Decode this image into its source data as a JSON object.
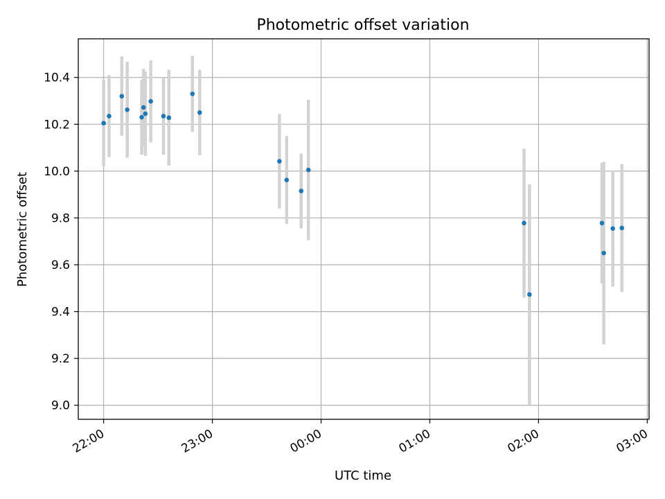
{
  "chart_data": {
    "type": "scatter",
    "title": "Photometric offset variation",
    "xlabel": "UTC time",
    "ylabel": "Photometric offset",
    "x_is_time": true,
    "xlim": [
      "21:46",
      "03:01"
    ],
    "ylim": [
      8.94,
      10.565
    ],
    "xticks": [
      "22:00",
      "23:00",
      "00:00",
      "01:00",
      "02:00",
      "03:00"
    ],
    "yticks": [
      9.0,
      9.2,
      9.4,
      9.6,
      9.8,
      10.0,
      10.2,
      10.4
    ],
    "ytick_labels": [
      "9.0",
      "9.2",
      "9.4",
      "9.6",
      "9.8",
      "10.0",
      "10.2",
      "10.4"
    ],
    "grid": true,
    "point_color": "#1f77b4",
    "errorbar_color": "#d3d3d3",
    "points": [
      {
        "t": "22:00",
        "y": 10.205,
        "err": 0.185
      },
      {
        "t": "22:03",
        "y": 10.235,
        "err": 0.175
      },
      {
        "t": "22:10",
        "y": 10.32,
        "err": 0.17
      },
      {
        "t": "22:13",
        "y": 10.262,
        "err": 0.205
      },
      {
        "t": "22:21",
        "y": 10.23,
        "err": 0.16
      },
      {
        "t": "22:22",
        "y": 10.272,
        "err": 0.165
      },
      {
        "t": "22:23",
        "y": 10.245,
        "err": 0.18
      },
      {
        "t": "22:26",
        "y": 10.298,
        "err": 0.175
      },
      {
        "t": "22:33",
        "y": 10.235,
        "err": 0.165
      },
      {
        "t": "22:36",
        "y": 10.228,
        "err": 0.205
      },
      {
        "t": "22:49",
        "y": 10.33,
        "err": 0.162
      },
      {
        "t": "22:53",
        "y": 10.25,
        "err": 0.183
      },
      {
        "t": "23:37",
        "y": 10.042,
        "err": 0.202
      },
      {
        "t": "23:41",
        "y": 9.962,
        "err": 0.188
      },
      {
        "t": "23:49",
        "y": 9.915,
        "err": 0.16
      },
      {
        "t": "23:53",
        "y": 10.005,
        "err": 0.3
      },
      {
        "t": "01:52",
        "y": 9.778,
        "err": 0.318
      },
      {
        "t": "01:55",
        "y": 9.473,
        "err": 0.47
      },
      {
        "t": "02:35",
        "y": 9.778,
        "err": 0.258
      },
      {
        "t": "02:36",
        "y": 9.65,
        "err": 0.39
      },
      {
        "t": "02:41",
        "y": 9.755,
        "err": 0.248
      },
      {
        "t": "02:46",
        "y": 9.757,
        "err": 0.273
      }
    ]
  }
}
